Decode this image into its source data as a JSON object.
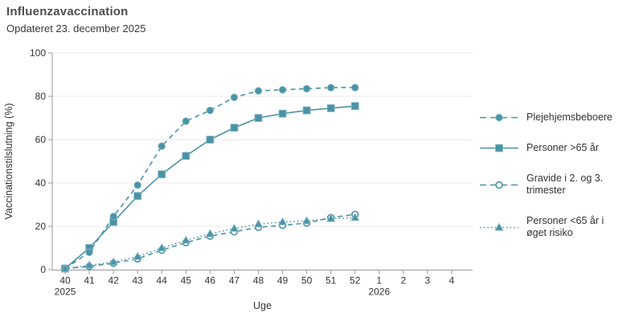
{
  "header": {
    "title": "Influenzavaccination",
    "subtitle": "Opdateret 23. december 2025"
  },
  "chart_data": {
    "type": "line",
    "title": "Influenzavaccination",
    "subtitle": "Opdateret 23. december 2025",
    "xlabel": "Uge",
    "ylabel": "Vaccinationstilslutning (%)",
    "ylim": [
      0,
      100
    ],
    "y_ticks": [
      0,
      20,
      40,
      60,
      80,
      100
    ],
    "grid": true,
    "legend_position": "right",
    "x_weeks": [
      40,
      41,
      42,
      43,
      44,
      45,
      46,
      47,
      48,
      49,
      50,
      51,
      52
    ],
    "x_axis_ticks": [
      "40",
      "41",
      "42",
      "43",
      "44",
      "45",
      "46",
      "47",
      "48",
      "49",
      "50",
      "51",
      "52",
      "1",
      "2",
      "3",
      "4"
    ],
    "year_markers": [
      {
        "tick_index": 0,
        "label": "2025"
      },
      {
        "tick_index": 13,
        "label": "2026"
      }
    ],
    "series": [
      {
        "name": "Plejehjemsbeboere",
        "label": "Plejehjemsbeboere",
        "marker": "circle",
        "line": "dashed",
        "values": [
          0.5,
          8,
          24.5,
          39,
          57,
          68.5,
          73.5,
          79.5,
          82.5,
          83,
          83.5,
          84,
          84
        ]
      },
      {
        "name": "Personer >65 år",
        "label": "Personer >65 år",
        "marker": "square",
        "line": "solid",
        "values": [
          0.5,
          10,
          22,
          34,
          44,
          52.5,
          60,
          65.5,
          70,
          72,
          73.5,
          74.5,
          75.5
        ]
      },
      {
        "name": "Gravide i 2. og 3. trimester",
        "label": "Gravide i 2. og 3. trimester",
        "marker": "circle-open",
        "line": "dashed",
        "values": [
          0.5,
          1.5,
          3,
          5,
          9,
          12.5,
          15.5,
          17.5,
          19.5,
          20.5,
          21.5,
          24,
          25.5
        ]
      },
      {
        "name": "Personer <65 år i øget risiko",
        "label": "Personer <65 år i\nøget risiko",
        "marker": "triangle",
        "line": "dotted",
        "values": [
          0.5,
          2,
          3.5,
          6,
          10,
          13.5,
          16.5,
          19,
          21,
          22,
          22.5,
          23.5,
          24
        ]
      }
    ],
    "colors": {
      "series": "#4a93a6",
      "marker_edge": "#8dbcc7",
      "grid": "#e9e9e9",
      "axis": "#999999",
      "tick_text": "#333333",
      "title_text": "#4d4d4d"
    }
  }
}
